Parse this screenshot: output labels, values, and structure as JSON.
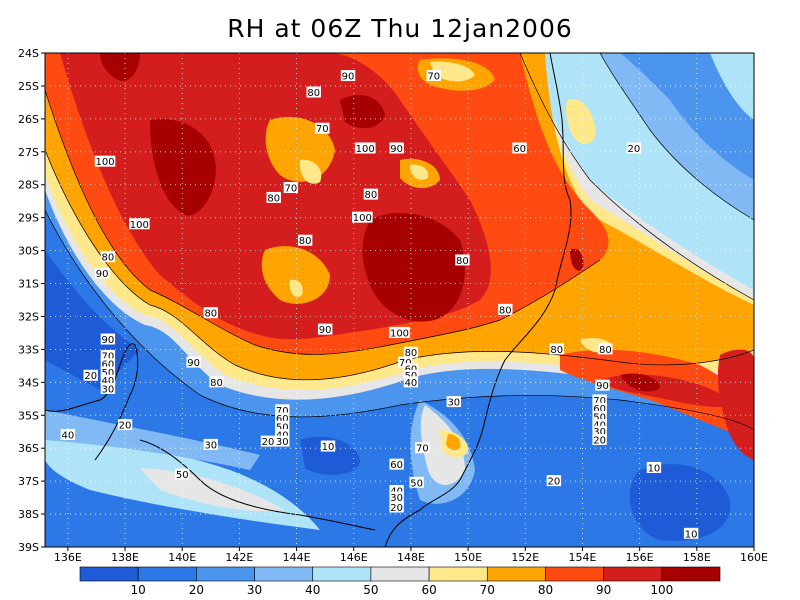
{
  "title": "RH at 06Z Thu 12jan2006",
  "chart_data": {
    "type": "heatmap",
    "title": "RH at 06Z Thu 12jan2006",
    "variable": "RH",
    "x_ticks": [
      "136E",
      "138E",
      "140E",
      "142E",
      "144E",
      "146E",
      "148E",
      "150E",
      "152E",
      "154E",
      "156E",
      "158E",
      "160E"
    ],
    "x_values": [
      136,
      138,
      140,
      142,
      144,
      146,
      148,
      150,
      152,
      154,
      156,
      158,
      160
    ],
    "y_ticks": [
      "24S",
      "25S",
      "26S",
      "27S",
      "28S",
      "29S",
      "30S",
      "31S",
      "32S",
      "33S",
      "34S",
      "35S",
      "36S",
      "37S",
      "38S",
      "39S"
    ],
    "y_values": [
      24,
      25,
      26,
      27,
      28,
      29,
      30,
      31,
      32,
      33,
      34,
      35,
      36,
      37,
      38,
      39
    ],
    "xlim": [
      135.2,
      160
    ],
    "ylim": [
      39,
      24
    ],
    "grid": true,
    "colorbar": {
      "labels": [
        "10",
        "20",
        "30",
        "40",
        "50",
        "60",
        "70",
        "80",
        "90",
        "100"
      ],
      "colors": [
        "#1e5bd6",
        "#2c78e6",
        "#4b95ee",
        "#80b9f4",
        "#aee3f8",
        "#e6e6e6",
        "#ffe88a",
        "#ffa400",
        "#ff4a12",
        "#d41e1e",
        "#a60000"
      ]
    },
    "contour_labels": [
      {
        "text": "90",
        "lon": 145.8,
        "lat": 24.7
      },
      {
        "text": "70",
        "lon": 148.8,
        "lat": 24.7
      },
      {
        "text": "80",
        "lon": 144.6,
        "lat": 25.2
      },
      {
        "text": "70",
        "lon": 144.9,
        "lat": 26.3
      },
      {
        "text": "100",
        "lon": 146.4,
        "lat": 26.9
      },
      {
        "text": "90",
        "lon": 147.5,
        "lat": 26.9
      },
      {
        "text": "60",
        "lon": 151.8,
        "lat": 26.9
      },
      {
        "text": "20",
        "lon": 155.8,
        "lat": 26.9
      },
      {
        "text": "100",
        "lon": 137.3,
        "lat": 27.3
      },
      {
        "text": "70",
        "lon": 143.8,
        "lat": 28.1
      },
      {
        "text": "80",
        "lon": 143.2,
        "lat": 28.4
      },
      {
        "text": "80",
        "lon": 146.6,
        "lat": 28.3
      },
      {
        "text": "100",
        "lon": 146.3,
        "lat": 29.0
      },
      {
        "text": "100",
        "lon": 138.5,
        "lat": 29.2
      },
      {
        "text": "80",
        "lon": 144.3,
        "lat": 29.7
      },
      {
        "text": "80",
        "lon": 137.4,
        "lat": 30.2
      },
      {
        "text": "90",
        "lon": 137.2,
        "lat": 30.7
      },
      {
        "text": "80",
        "lon": 149.8,
        "lat": 30.3
      },
      {
        "text": "80",
        "lon": 151.3,
        "lat": 31.8
      },
      {
        "text": "80",
        "lon": 141.0,
        "lat": 31.9
      },
      {
        "text": "90",
        "lon": 145.0,
        "lat": 32.4
      },
      {
        "text": "100",
        "lon": 147.6,
        "lat": 32.5
      },
      {
        "text": "90",
        "lon": 137.4,
        "lat": 32.7
      },
      {
        "text": "70",
        "lon": 137.4,
        "lat": 33.2
      },
      {
        "text": "60",
        "lon": 137.4,
        "lat": 33.45
      },
      {
        "text": "50",
        "lon": 137.4,
        "lat": 33.7
      },
      {
        "text": "40",
        "lon": 137.4,
        "lat": 33.95
      },
      {
        "text": "30",
        "lon": 137.4,
        "lat": 34.2
      },
      {
        "text": "80",
        "lon": 153.1,
        "lat": 33.0
      },
      {
        "text": "20",
        "lon": 136.8,
        "lat": 33.8
      },
      {
        "text": "90",
        "lon": 140.4,
        "lat": 33.4
      },
      {
        "text": "80",
        "lon": 141.2,
        "lat": 34.0
      },
      {
        "text": "80",
        "lon": 148.0,
        "lat": 33.1
      },
      {
        "text": "70",
        "lon": 147.8,
        "lat": 33.4
      },
      {
        "text": "60",
        "lon": 148.0,
        "lat": 33.6
      },
      {
        "text": "50",
        "lon": 148.0,
        "lat": 33.8
      },
      {
        "text": "40",
        "lon": 148.0,
        "lat": 34.0
      },
      {
        "text": "80",
        "lon": 154.8,
        "lat": 33.0
      },
      {
        "text": "90",
        "lon": 154.7,
        "lat": 34.1
      },
      {
        "text": "30",
        "lon": 149.5,
        "lat": 34.6
      },
      {
        "text": "70",
        "lon": 154.6,
        "lat": 34.55
      },
      {
        "text": "60",
        "lon": 154.6,
        "lat": 34.8
      },
      {
        "text": "50",
        "lon": 154.6,
        "lat": 35.05
      },
      {
        "text": "40",
        "lon": 154.6,
        "lat": 35.3
      },
      {
        "text": "30",
        "lon": 154.6,
        "lat": 35.5
      },
      {
        "text": "20",
        "lon": 154.6,
        "lat": 35.75
      },
      {
        "text": "70",
        "lon": 143.5,
        "lat": 34.85
      },
      {
        "text": "60",
        "lon": 143.5,
        "lat": 35.1
      },
      {
        "text": "50",
        "lon": 143.5,
        "lat": 35.35
      },
      {
        "text": "40",
        "lon": 143.5,
        "lat": 35.6
      },
      {
        "text": "30",
        "lon": 143.5,
        "lat": 35.8
      },
      {
        "text": "20",
        "lon": 143.0,
        "lat": 35.8
      },
      {
        "text": "20",
        "lon": 138.0,
        "lat": 35.3
      },
      {
        "text": "40",
        "lon": 136.0,
        "lat": 35.6
      },
      {
        "text": "30",
        "lon": 141.0,
        "lat": 35.9
      },
      {
        "text": "10",
        "lon": 145.1,
        "lat": 35.95
      },
      {
        "text": "70",
        "lon": 148.4,
        "lat": 36.0
      },
      {
        "text": "60",
        "lon": 147.5,
        "lat": 36.5
      },
      {
        "text": "50",
        "lon": 140.0,
        "lat": 36.8
      },
      {
        "text": "50",
        "lon": 148.2,
        "lat": 37.05
      },
      {
        "text": "40",
        "lon": 147.5,
        "lat": 37.3
      },
      {
        "text": "30",
        "lon": 147.5,
        "lat": 37.5
      },
      {
        "text": "20",
        "lon": 147.5,
        "lat": 37.8
      },
      {
        "text": "20",
        "lon": 153.0,
        "lat": 37.0
      },
      {
        "text": "10",
        "lon": 156.5,
        "lat": 36.6
      },
      {
        "text": "10",
        "lon": 157.8,
        "lat": 38.6
      }
    ]
  }
}
